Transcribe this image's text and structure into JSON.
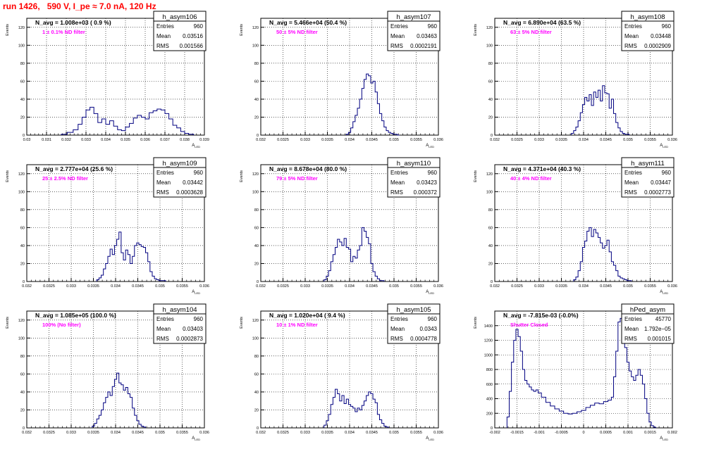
{
  "page_title": "run 1426,   590 V, I_pe ≈ 7.0 nA, 120 Hz",
  "colors": {
    "line": "#000080",
    "note": "#ff00ff",
    "title": "#ff0000",
    "text": "#000000"
  },
  "chart_data": [
    {
      "type": "histogram",
      "hist_name": "h_asym106",
      "header": "N_avg = 1.008e+03 ( 0.9 %)",
      "note": "1 ± 0.1% ND filter",
      "stats": [
        [
          "Entries",
          "960"
        ],
        [
          "Mean",
          "0.03516"
        ],
        [
          "RMS",
          "0.001566"
        ]
      ],
      "ylabel": "Events",
      "xlabel": "A_LED",
      "xlim": [
        0.03,
        0.039
      ],
      "ylim": [
        0,
        130
      ],
      "xticks": [
        0.03,
        0.031,
        0.032,
        0.033,
        0.034,
        0.035,
        0.036,
        0.037,
        0.038,
        0.039
      ],
      "xtick_labels": [
        "0.03",
        "0.031",
        "0.032",
        "0.033",
        "0.034",
        "0.035",
        "0.036",
        "0.037",
        "0.038",
        "0.039"
      ],
      "yticks": [
        0,
        20,
        40,
        60,
        80,
        100,
        120
      ],
      "ytick_labels": [
        "0",
        "20",
        "40",
        "60",
        "80",
        "100",
        "120"
      ],
      "x": [
        0.0319,
        0.0322,
        0.0325,
        0.0327,
        0.0329,
        0.0331,
        0.0333,
        0.0335,
        0.0337,
        0.0339,
        0.0341,
        0.0343,
        0.0345,
        0.0347,
        0.0349,
        0.0351,
        0.0353,
        0.0355,
        0.0357,
        0.0359,
        0.0361,
        0.0363,
        0.0365,
        0.0367,
        0.0369,
        0.0371,
        0.0373,
        0.0375,
        0.0377,
        0.0379,
        0.0381,
        0.0383
      ],
      "y": [
        1,
        3,
        6,
        12,
        20,
        28,
        31,
        24,
        14,
        18,
        12,
        16,
        10,
        6,
        5,
        9,
        13,
        19,
        22,
        20,
        18,
        25,
        27,
        29,
        28,
        24,
        18,
        11,
        8,
        4,
        2,
        1
      ]
    },
    {
      "type": "histogram",
      "hist_name": "h_asym107",
      "header": "N_avg = 5.466e+04 (50.4 %)",
      "note": "50 ± 5% ND filter",
      "stats": [
        [
          "Entries",
          "960"
        ],
        [
          "Mean",
          "0.03463"
        ],
        [
          "RMS",
          "0.0002191"
        ]
      ],
      "ylabel": "Events",
      "xlabel": "A_LED",
      "xlim": [
        0.032,
        0.036
      ],
      "ylim": [
        0,
        130
      ],
      "xticks": [
        0.032,
        0.0325,
        0.033,
        0.0335,
        0.034,
        0.0345,
        0.035,
        0.0355,
        0.036
      ],
      "xtick_labels": [
        "0.032",
        "0.0325",
        "0.033",
        "0.0335",
        "0.034",
        "0.0345",
        "0.035",
        "0.0355",
        "0.036"
      ],
      "yticks": [
        0,
        20,
        40,
        60,
        80,
        100,
        120
      ],
      "ytick_labels": [
        "0",
        "20",
        "40",
        "60",
        "80",
        "100",
        "120"
      ],
      "x": [
        0.03395,
        0.034,
        0.03405,
        0.0341,
        0.03415,
        0.0342,
        0.03425,
        0.0343,
        0.03435,
        0.0344,
        0.03445,
        0.0345,
        0.03455,
        0.0346,
        0.03465,
        0.0347,
        0.03475,
        0.0348,
        0.03485,
        0.0349,
        0.03495,
        0.035,
        0.03505,
        0.0351
      ],
      "y": [
        1,
        3,
        8,
        15,
        22,
        30,
        40,
        52,
        62,
        68,
        66,
        58,
        60,
        48,
        35,
        24,
        16,
        9,
        5,
        3,
        2,
        1,
        1,
        0
      ]
    },
    {
      "type": "histogram",
      "hist_name": "h_asym108",
      "header": "N_avg = 6.890e+04 (63.5 %)",
      "note": "63 ± 5% ND filter",
      "stats": [
        [
          "Entries",
          "960"
        ],
        [
          "Mean",
          "0.03448"
        ],
        [
          "RMS",
          "0.0002909"
        ]
      ],
      "ylabel": "Events",
      "xlabel": "A_LED",
      "xlim": [
        0.032,
        0.036
      ],
      "ylim": [
        0,
        130
      ],
      "xticks": [
        0.032,
        0.0325,
        0.033,
        0.0335,
        0.034,
        0.0345,
        0.035,
        0.0355,
        0.036
      ],
      "xtick_labels": [
        "0.032",
        "0.0325",
        "0.033",
        "0.0335",
        "0.034",
        "0.0345",
        "0.035",
        "0.0355",
        "0.036"
      ],
      "yticks": [
        0,
        20,
        40,
        60,
        80,
        100,
        120
      ],
      "ytick_labels": [
        "0",
        "20",
        "40",
        "60",
        "80",
        "100",
        "120"
      ],
      "x": [
        0.03375,
        0.0338,
        0.03385,
        0.0339,
        0.03395,
        0.034,
        0.03405,
        0.0341,
        0.03415,
        0.0342,
        0.03425,
        0.0343,
        0.03435,
        0.0344,
        0.03445,
        0.0345,
        0.03455,
        0.0346,
        0.03465,
        0.0347,
        0.03475,
        0.0348,
        0.03485,
        0.0349,
        0.03495,
        0.035
      ],
      "y": [
        2,
        5,
        9,
        16,
        25,
        34,
        42,
        38,
        45,
        33,
        48,
        42,
        50,
        38,
        55,
        47,
        46,
        30,
        40,
        24,
        14,
        8,
        4,
        2,
        1,
        1
      ]
    },
    {
      "type": "histogram",
      "hist_name": "h_asym109",
      "header": "N_avg = 2.777e+04 (25.6 %)",
      "note": "25 ± 2.5% ND filter",
      "stats": [
        [
          "Entries",
          "960"
        ],
        [
          "Mean",
          "0.03442"
        ],
        [
          "RMS",
          "0.0003628"
        ]
      ],
      "ylabel": "Events",
      "xlabel": "A_LED",
      "xlim": [
        0.032,
        0.036
      ],
      "ylim": [
        0,
        130
      ],
      "xticks": [
        0.032,
        0.0325,
        0.033,
        0.0335,
        0.034,
        0.0345,
        0.035,
        0.0355,
        0.036
      ],
      "xtick_labels": [
        "0.032",
        "0.0325",
        "0.033",
        "0.0335",
        "0.034",
        "0.0345",
        "0.035",
        "0.0355",
        "0.036"
      ],
      "yticks": [
        0,
        20,
        40,
        60,
        80,
        100,
        120
      ],
      "ytick_labels": [
        "0",
        "20",
        "40",
        "60",
        "80",
        "100",
        "120"
      ],
      "x": [
        0.0336,
        0.03365,
        0.0337,
        0.03375,
        0.0338,
        0.03385,
        0.0339,
        0.03395,
        0.034,
        0.03405,
        0.0341,
        0.03415,
        0.0342,
        0.03425,
        0.0343,
        0.03435,
        0.0344,
        0.03445,
        0.0345,
        0.03455,
        0.0346,
        0.03465,
        0.0347,
        0.03475,
        0.0348,
        0.03485,
        0.0349,
        0.03495,
        0.035,
        0.03505,
        0.0351
      ],
      "y": [
        2,
        4,
        7,
        14,
        20,
        28,
        36,
        30,
        40,
        47,
        55,
        32,
        24,
        35,
        30,
        20,
        28,
        40,
        43,
        41,
        39,
        38,
        32,
        22,
        11,
        6,
        3,
        2,
        1,
        1,
        1
      ]
    },
    {
      "type": "histogram",
      "hist_name": "h_asym110",
      "header": "N_avg = 8.678e+04 (80.0 %)",
      "note": "79 ± 5% ND filter",
      "stats": [
        [
          "Entries",
          "960"
        ],
        [
          "Mean",
          "0.03423"
        ],
        [
          "RMS",
          "0.000372"
        ]
      ],
      "ylabel": "Events",
      "xlabel": "A_LED",
      "xlim": [
        0.032,
        0.036
      ],
      "ylim": [
        0,
        130
      ],
      "xticks": [
        0.032,
        0.0325,
        0.033,
        0.0335,
        0.034,
        0.0345,
        0.035,
        0.0355,
        0.036
      ],
      "xtick_labels": [
        "0.032",
        "0.0325",
        "0.033",
        "0.0335",
        "0.034",
        "0.0345",
        "0.035",
        "0.0355",
        "0.036"
      ],
      "yticks": [
        0,
        20,
        40,
        60,
        80,
        100,
        120
      ],
      "ytick_labels": [
        "0",
        "20",
        "40",
        "60",
        "80",
        "100",
        "120"
      ],
      "x": [
        0.03345,
        0.0335,
        0.03355,
        0.0336,
        0.03365,
        0.0337,
        0.03375,
        0.0338,
        0.03385,
        0.0339,
        0.03395,
        0.034,
        0.03405,
        0.0341,
        0.03415,
        0.0342,
        0.03425,
        0.0343,
        0.03435,
        0.0344,
        0.03445,
        0.0345,
        0.03455,
        0.0346,
        0.03465,
        0.0347,
        0.03475
      ],
      "y": [
        2,
        6,
        12,
        22,
        30,
        38,
        47,
        44,
        40,
        48,
        38,
        36,
        22,
        28,
        26,
        35,
        40,
        60,
        56,
        49,
        42,
        20,
        11,
        6,
        3,
        1,
        1
      ]
    },
    {
      "type": "histogram",
      "hist_name": "h_asym111",
      "header": "N_avg = 4.371e+04 (40.3 %)",
      "note": "40 ± 4% ND filter",
      "stats": [
        [
          "Entries",
          "960"
        ],
        [
          "Mean",
          "0.03447"
        ],
        [
          "RMS",
          "0.0002773"
        ]
      ],
      "ylabel": "Events",
      "xlabel": "A_LED",
      "xlim": [
        0.032,
        0.036
      ],
      "ylim": [
        0,
        130
      ],
      "xticks": [
        0.032,
        0.0325,
        0.033,
        0.0335,
        0.034,
        0.0345,
        0.035,
        0.0355,
        0.036
      ],
      "xtick_labels": [
        "0.032",
        "0.0325",
        "0.033",
        "0.0335",
        "0.034",
        "0.0345",
        "0.035",
        "0.0355",
        "0.036"
      ],
      "yticks": [
        0,
        20,
        40,
        60,
        80,
        100,
        120
      ],
      "ytick_labels": [
        "0",
        "20",
        "40",
        "60",
        "80",
        "100",
        "120"
      ],
      "x": [
        0.0338,
        0.03385,
        0.0339,
        0.03395,
        0.034,
        0.03405,
        0.0341,
        0.03415,
        0.0342,
        0.03425,
        0.0343,
        0.03435,
        0.0344,
        0.03445,
        0.0345,
        0.03455,
        0.0346,
        0.03465,
        0.0347,
        0.03475,
        0.0348,
        0.03485,
        0.0349,
        0.03495,
        0.035,
        0.03505
      ],
      "y": [
        2,
        5,
        12,
        22,
        38,
        45,
        56,
        60,
        50,
        58,
        54,
        49,
        43,
        37,
        40,
        46,
        33,
        22,
        18,
        12,
        6,
        4,
        3,
        2,
        1,
        1
      ]
    },
    {
      "type": "histogram",
      "hist_name": "h_asym104",
      "header": "N_avg = 1.085e+05 (100.0 %)",
      "note": "100% (No filter)",
      "stats": [
        [
          "Entries",
          "960"
        ],
        [
          "Mean",
          "0.03403"
        ],
        [
          "RMS",
          "0.0002873"
        ]
      ],
      "ylabel": "Events",
      "xlabel": "A_LED",
      "xlim": [
        0.032,
        0.036
      ],
      "ylim": [
        0,
        130
      ],
      "xticks": [
        0.032,
        0.0325,
        0.033,
        0.0335,
        0.034,
        0.0345,
        0.035,
        0.0355,
        0.036
      ],
      "xtick_labels": [
        "0.032",
        "0.0325",
        "0.033",
        "0.0335",
        "0.034",
        "0.0345",
        "0.035",
        "0.0355",
        "0.036"
      ],
      "yticks": [
        0,
        20,
        40,
        60,
        80,
        100,
        120
      ],
      "ytick_labels": [
        "0",
        "20",
        "40",
        "60",
        "80",
        "100",
        "120"
      ],
      "x": [
        0.0335,
        0.03355,
        0.0336,
        0.03365,
        0.0337,
        0.03375,
        0.0338,
        0.03385,
        0.0339,
        0.03395,
        0.034,
        0.03405,
        0.0341,
        0.03415,
        0.0342,
        0.03425,
        0.0343,
        0.03435,
        0.0344,
        0.03445,
        0.0345,
        0.03455,
        0.0346,
        0.03465
      ],
      "y": [
        2,
        5,
        10,
        14,
        20,
        28,
        34,
        40,
        36,
        46,
        54,
        61,
        50,
        48,
        42,
        45,
        38,
        34,
        22,
        14,
        8,
        4,
        2,
        1
      ]
    },
    {
      "type": "histogram",
      "hist_name": "h_asym105",
      "header": "N_avg = 1.020e+04 ( 9.4 %)",
      "note": "10 ± 1% ND filter",
      "stats": [
        [
          "Entries",
          "960"
        ],
        [
          "Mean",
          "0.0343"
        ],
        [
          "RMS",
          "0.0004778"
        ]
      ],
      "ylabel": "Events",
      "xlabel": "A_LED",
      "xlim": [
        0.032,
        0.036
      ],
      "ylim": [
        0,
        130
      ],
      "xticks": [
        0.032,
        0.0325,
        0.033,
        0.0335,
        0.034,
        0.0345,
        0.035,
        0.0355,
        0.036
      ],
      "xtick_labels": [
        "0.032",
        "0.0325",
        "0.033",
        "0.0335",
        "0.034",
        "0.0345",
        "0.035",
        "0.0355",
        "0.036"
      ],
      "yticks": [
        0,
        20,
        40,
        60,
        80,
        100,
        120
      ],
      "ytick_labels": [
        "0",
        "20",
        "40",
        "60",
        "80",
        "100",
        "120"
      ],
      "x": [
        0.03345,
        0.0335,
        0.03355,
        0.0336,
        0.03365,
        0.0337,
        0.03375,
        0.0338,
        0.03385,
        0.0339,
        0.03395,
        0.034,
        0.03405,
        0.0341,
        0.03415,
        0.0342,
        0.03425,
        0.0343,
        0.03435,
        0.0344,
        0.03445,
        0.0345,
        0.03455,
        0.0346,
        0.03465,
        0.0347,
        0.03475,
        0.0348,
        0.03485
      ],
      "y": [
        3,
        8,
        15,
        26,
        34,
        43,
        38,
        30,
        36,
        27,
        32,
        26,
        24,
        22,
        18,
        22,
        20,
        25,
        30,
        36,
        40,
        38,
        32,
        28,
        15,
        9,
        5,
        2,
        1
      ]
    },
    {
      "type": "histogram",
      "hist_name": "hPed_asym",
      "header": "N_avg = -7.815e-03 (-0.0%)",
      "note": "Shutter Closed",
      "stats": [
        [
          "Entries",
          "45770"
        ],
        [
          "Mean",
          "1.792e−05"
        ],
        [
          "RMS",
          "0.001015"
        ]
      ],
      "ylabel": "Events",
      "xlabel": "A_LED",
      "xlim": [
        -0.002,
        0.002
      ],
      "ylim": [
        0,
        1600
      ],
      "xticks": [
        -0.002,
        -0.0015,
        -0.001,
        -0.0005,
        0,
        0.0005,
        0.001,
        0.0015,
        0.002
      ],
      "xtick_labels": [
        "-0.002",
        "-0.0015",
        "-0.001",
        "-0.0005",
        "0",
        "0.0005",
        "0.001",
        "0.0015",
        "0.002"
      ],
      "yticks": [
        0,
        200,
        400,
        600,
        800,
        1000,
        1200,
        1400
      ],
      "ytick_labels": [
        "0",
        "200",
        "400",
        "600",
        "800",
        "1000",
        "1200",
        "1400"
      ],
      "x": [
        -0.0017,
        -0.00165,
        -0.0016,
        -0.00155,
        -0.0015,
        -0.00145,
        -0.0014,
        -0.00135,
        -0.0013,
        -0.00125,
        -0.0012,
        -0.00115,
        -0.0011,
        -0.00105,
        -0.001,
        -0.0009,
        -0.0008,
        -0.0007,
        -0.0006,
        -0.0005,
        -0.0004,
        -0.0003,
        -0.0002,
        -0.0001,
        0,
        0.0001,
        0.0002,
        0.0003,
        0.0004,
        0.0005,
        0.0006,
        0.00065,
        0.0007,
        0.00075,
        0.0008,
        0.00085,
        0.0009,
        0.00095,
        0.001,
        0.00105,
        0.0011,
        0.00115,
        0.0012,
        0.00125,
        0.0013,
        0.00135,
        0.0014,
        0.00145,
        0.0015,
        0.00155,
        0.0016
      ],
      "y": [
        150,
        500,
        900,
        1200,
        1350,
        1250,
        1050,
        800,
        650,
        600,
        560,
        520,
        500,
        520,
        480,
        420,
        350,
        300,
        260,
        230,
        200,
        190,
        200,
        220,
        240,
        280,
        310,
        340,
        330,
        360,
        380,
        420,
        700,
        1050,
        1450,
        1500,
        1300,
        1100,
        900,
        780,
        700,
        650,
        720,
        800,
        720,
        600,
        400,
        200,
        80,
        30,
        10
      ]
    }
  ]
}
